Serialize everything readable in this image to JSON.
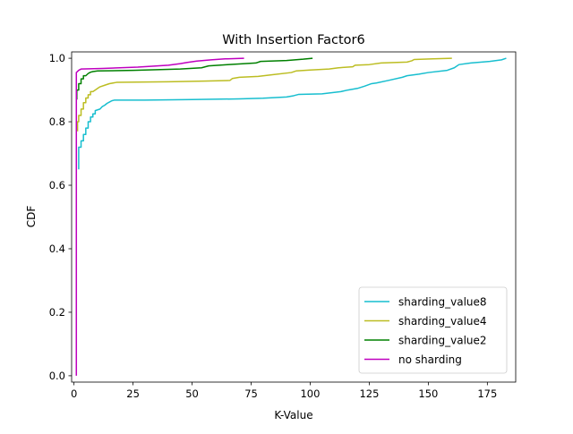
{
  "chart_data": {
    "type": "line",
    "title": "With Insertion Factor6",
    "xlabel": "K-Value",
    "ylabel": "CDF",
    "xlim": [
      -1,
      187
    ],
    "ylim": [
      -0.02,
      1.02
    ],
    "xticks": [
      0,
      25,
      50,
      75,
      100,
      125,
      150,
      175
    ],
    "yticks": [
      0.0,
      0.2,
      0.4,
      0.6,
      0.8,
      1.0
    ],
    "ytick_labels": [
      "0.0",
      "0.2",
      "0.4",
      "0.6",
      "0.8",
      "1.0"
    ],
    "grid": false,
    "legend_position": "lower right",
    "series": [
      {
        "name": "sharding_value8",
        "color": "#17becf",
        "points": [
          [
            2,
            0.65
          ],
          [
            2,
            0.72
          ],
          [
            3,
            0.72
          ],
          [
            3,
            0.74
          ],
          [
            4,
            0.74
          ],
          [
            4,
            0.76
          ],
          [
            5,
            0.76
          ],
          [
            5,
            0.78
          ],
          [
            6,
            0.78
          ],
          [
            6,
            0.8
          ],
          [
            7,
            0.8
          ],
          [
            7,
            0.815
          ],
          [
            8,
            0.815
          ],
          [
            8,
            0.825
          ],
          [
            9,
            0.825
          ],
          [
            9,
            0.835
          ],
          [
            11,
            0.84
          ],
          [
            12,
            0.848
          ],
          [
            13,
            0.852
          ],
          [
            14,
            0.858
          ],
          [
            15,
            0.862
          ],
          [
            16,
            0.866
          ],
          [
            17,
            0.868
          ],
          [
            30,
            0.868
          ],
          [
            50,
            0.87
          ],
          [
            70,
            0.872
          ],
          [
            80,
            0.874
          ],
          [
            90,
            0.878
          ],
          [
            93,
            0.882
          ],
          [
            95,
            0.886
          ],
          [
            105,
            0.888
          ],
          [
            113,
            0.895
          ],
          [
            116,
            0.9
          ],
          [
            120,
            0.905
          ],
          [
            123,
            0.912
          ],
          [
            126,
            0.92
          ],
          [
            128,
            0.922
          ],
          [
            133,
            0.93
          ],
          [
            139,
            0.94
          ],
          [
            141,
            0.945
          ],
          [
            146,
            0.95
          ],
          [
            150,
            0.955
          ],
          [
            158,
            0.962
          ],
          [
            161,
            0.97
          ],
          [
            163,
            0.98
          ],
          [
            168,
            0.985
          ],
          [
            176,
            0.99
          ],
          [
            181,
            0.995
          ],
          [
            183,
            1.0
          ]
        ]
      },
      {
        "name": "sharding_value4",
        "color": "#bcbd22",
        "points": [
          [
            1.5,
            0.77
          ],
          [
            1.5,
            0.8
          ],
          [
            2,
            0.8
          ],
          [
            2,
            0.82
          ],
          [
            3,
            0.82
          ],
          [
            3,
            0.84
          ],
          [
            4,
            0.84
          ],
          [
            4,
            0.86
          ],
          [
            5,
            0.86
          ],
          [
            5,
            0.875
          ],
          [
            6,
            0.875
          ],
          [
            6,
            0.885
          ],
          [
            7,
            0.885
          ],
          [
            7,
            0.895
          ],
          [
            8,
            0.895
          ],
          [
            9,
            0.9
          ],
          [
            10,
            0.905
          ],
          [
            11,
            0.91
          ],
          [
            13,
            0.915
          ],
          [
            15,
            0.92
          ],
          [
            18,
            0.924
          ],
          [
            40,
            0.926
          ],
          [
            55,
            0.928
          ],
          [
            66,
            0.93
          ],
          [
            67,
            0.936
          ],
          [
            70,
            0.94
          ],
          [
            78,
            0.943
          ],
          [
            84,
            0.948
          ],
          [
            92,
            0.955
          ],
          [
            94,
            0.96
          ],
          [
            100,
            0.963
          ],
          [
            108,
            0.966
          ],
          [
            112,
            0.97
          ],
          [
            118,
            0.973
          ],
          [
            119,
            0.978
          ],
          [
            125,
            0.98
          ],
          [
            130,
            0.985
          ],
          [
            141,
            0.988
          ],
          [
            143,
            0.992
          ],
          [
            144,
            0.996
          ],
          [
            152,
            0.998
          ],
          [
            160,
            1.0
          ]
        ]
      },
      {
        "name": "sharding_value2",
        "color": "#008000",
        "points": [
          [
            1.2,
            0.87
          ],
          [
            1.2,
            0.9
          ],
          [
            2,
            0.9
          ],
          [
            2,
            0.92
          ],
          [
            3,
            0.92
          ],
          [
            3,
            0.935
          ],
          [
            4,
            0.935
          ],
          [
            4,
            0.945
          ],
          [
            5,
            0.945
          ],
          [
            6,
            0.952
          ],
          [
            7,
            0.956
          ],
          [
            8,
            0.958
          ],
          [
            10,
            0.96
          ],
          [
            25,
            0.962
          ],
          [
            45,
            0.966
          ],
          [
            54,
            0.97
          ],
          [
            57,
            0.976
          ],
          [
            65,
            0.98
          ],
          [
            77,
            0.985
          ],
          [
            79,
            0.99
          ],
          [
            90,
            0.993
          ],
          [
            97,
            0.997
          ],
          [
            101,
            1.0
          ]
        ]
      },
      {
        "name": "no sharding",
        "color": "#bf00bf",
        "points": [
          [
            1,
            0.0
          ],
          [
            1,
            0.955
          ],
          [
            2,
            0.962
          ],
          [
            3,
            0.966
          ],
          [
            12,
            0.968
          ],
          [
            27,
            0.972
          ],
          [
            40,
            0.978
          ],
          [
            45,
            0.983
          ],
          [
            48,
            0.987
          ],
          [
            52,
            0.991
          ],
          [
            58,
            0.995
          ],
          [
            64,
            0.998
          ],
          [
            72,
            1.0
          ]
        ]
      }
    ]
  }
}
